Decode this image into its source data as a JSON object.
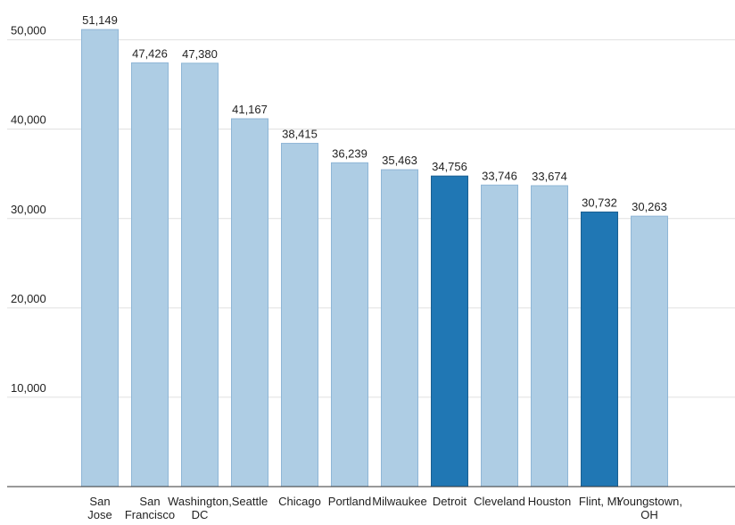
{
  "chart_data": {
    "type": "bar",
    "title": "",
    "xlabel": "",
    "ylabel": "",
    "ylim": [
      0,
      54000
    ],
    "yticks": [
      10000,
      20000,
      30000,
      40000,
      50000
    ],
    "ytick_labels": [
      "10,000",
      "20,000",
      "30,000",
      "40,000",
      "50,000"
    ],
    "grid": true,
    "categories": [
      [
        "San",
        "Jose"
      ],
      [
        "San",
        "Francisco"
      ],
      [
        "Washington,",
        "DC"
      ],
      [
        "Seattle"
      ],
      [
        "Chicago"
      ],
      [
        "Portland"
      ],
      [
        "Milwaukee"
      ],
      [
        "Detroit"
      ],
      [
        "Cleveland"
      ],
      [
        "Houston"
      ],
      [
        "Flint, MI"
      ],
      [
        "Youngstown,",
        "OH"
      ]
    ],
    "values": [
      51149,
      47426,
      47380,
      41167,
      38415,
      36239,
      35463,
      34756,
      33746,
      33674,
      30732,
      30263
    ],
    "value_labels": [
      "51,149",
      "47,426",
      "47,380",
      "41,167",
      "38,415",
      "36,239",
      "35,463",
      "34,756",
      "33,746",
      "33,674",
      "30,732",
      "30,263"
    ],
    "highlighted": [
      false,
      false,
      false,
      false,
      false,
      false,
      false,
      true,
      false,
      false,
      true,
      false
    ],
    "colors": {
      "bar": "#aecde4",
      "bar_stroke": "#8fb6d6",
      "highlight": "#2077b4",
      "highlight_stroke": "#1a5f91",
      "grid": "#e0e0e0",
      "axis": "#333333"
    }
  }
}
